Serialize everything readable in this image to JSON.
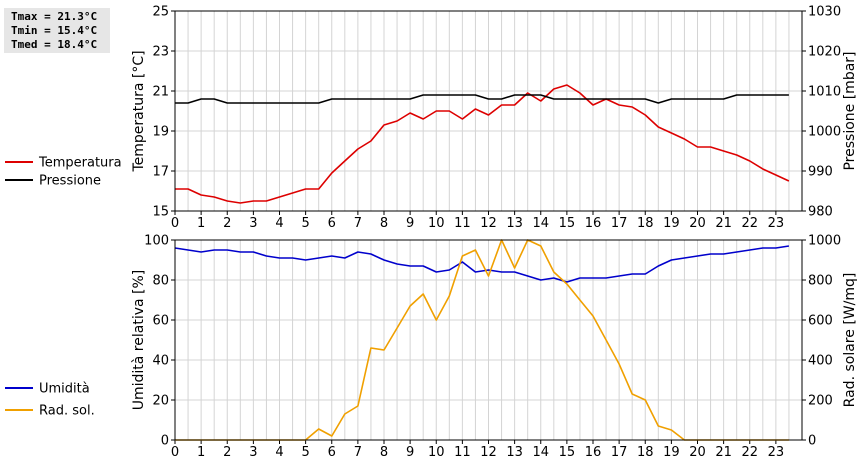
{
  "stats": {
    "tmax": "Tmax = 21.3°C",
    "tmin": "Tmin = 15.4°C",
    "tmed": "Tmed = 18.4°C"
  },
  "chart_data": [
    {
      "type": "line",
      "title": "",
      "xlabel": "",
      "ylabel": "Temperatura [°C]",
      "ylabel_right": "Pressione [mbar]",
      "x_ticks": [
        "0",
        "1",
        "2",
        "3",
        "4",
        "5",
        "6",
        "7",
        "8",
        "9",
        "10",
        "11",
        "12",
        "13",
        "14",
        "15",
        "16",
        "17",
        "18",
        "19",
        "20",
        "21",
        "22",
        "23"
      ],
      "xlim": [
        0,
        24
      ],
      "ylim": [
        15,
        25
      ],
      "ylim_right": [
        980,
        1030
      ],
      "y_ticks": [
        "15",
        "17",
        "19",
        "21",
        "23",
        "25"
      ],
      "y_ticks_right": [
        "980",
        "990",
        "1000",
        "1010",
        "1020",
        "1030"
      ],
      "grid": true,
      "legend_position": "left",
      "series": [
        {
          "name": "Temperatura",
          "color": "#dd0000",
          "axis": "left",
          "x": [
            0,
            0.5,
            1,
            1.5,
            2,
            2.5,
            3,
            3.5,
            4,
            4.5,
            5,
            5.5,
            6,
            6.5,
            7,
            7.5,
            8,
            8.5,
            9,
            9.5,
            10,
            10.5,
            11,
            11.5,
            12,
            12.5,
            13,
            13.5,
            14,
            14.5,
            15,
            15.5,
            16,
            16.5,
            17,
            17.5,
            18,
            18.5,
            19,
            19.5,
            20,
            20.5,
            21,
            21.5,
            22,
            22.5,
            23,
            23.5
          ],
          "values": [
            16.1,
            16.1,
            15.8,
            15.7,
            15.5,
            15.4,
            15.5,
            15.5,
            15.7,
            15.9,
            16.1,
            16.1,
            16.9,
            17.5,
            18.1,
            18.5,
            19.3,
            19.5,
            19.9,
            19.6,
            20.0,
            20.0,
            19.6,
            20.1,
            19.8,
            20.3,
            20.3,
            20.9,
            20.5,
            21.1,
            21.3,
            20.9,
            20.3,
            20.6,
            20.3,
            20.2,
            19.8,
            19.2,
            18.9,
            18.6,
            18.2,
            18.2,
            18.0,
            17.8,
            17.5,
            17.1,
            16.8,
            16.5
          ]
        },
        {
          "name": "Pressione",
          "color": "#000000",
          "axis": "right",
          "x": [
            0,
            0.5,
            1,
            1.5,
            2,
            2.5,
            3,
            3.5,
            4,
            4.5,
            5,
            5.5,
            6,
            6.5,
            7,
            7.5,
            8,
            8.5,
            9,
            9.5,
            10,
            10.5,
            11,
            11.5,
            12,
            12.5,
            13,
            13.5,
            14,
            14.5,
            15,
            15.5,
            16,
            16.5,
            17,
            17.5,
            18,
            18.5,
            19,
            19.5,
            20,
            20.5,
            21,
            21.5,
            22,
            22.5,
            23,
            23.5
          ],
          "values": [
            1007,
            1007,
            1008,
            1008,
            1007,
            1007,
            1007,
            1007,
            1007,
            1007,
            1007,
            1007,
            1008,
            1008,
            1008,
            1008,
            1008,
            1008,
            1008,
            1009,
            1009,
            1009,
            1009,
            1009,
            1008,
            1008,
            1009,
            1009,
            1009,
            1008,
            1008,
            1008,
            1008,
            1008,
            1008,
            1008,
            1008,
            1007,
            1008,
            1008,
            1008,
            1008,
            1008,
            1009,
            1009,
            1009,
            1009,
            1009
          ]
        }
      ]
    },
    {
      "type": "line",
      "title": "",
      "xlabel": "",
      "ylabel": "Umidità relativa [%]",
      "ylabel_right": "Rad. solare [W/mq]",
      "x_ticks": [
        "0",
        "1",
        "2",
        "3",
        "4",
        "5",
        "6",
        "7",
        "8",
        "9",
        "10",
        "11",
        "12",
        "13",
        "14",
        "15",
        "16",
        "17",
        "18",
        "19",
        "20",
        "21",
        "22",
        "23"
      ],
      "xlim": [
        0,
        24
      ],
      "ylim": [
        0,
        100
      ],
      "ylim_right": [
        0,
        1000
      ],
      "y_ticks": [
        "0",
        "20",
        "40",
        "60",
        "80",
        "100"
      ],
      "y_ticks_right": [
        "0",
        "200",
        "400",
        "600",
        "800",
        "1000"
      ],
      "grid": true,
      "legend_position": "left",
      "series": [
        {
          "name": "Umidità",
          "color": "#0000cc",
          "axis": "left",
          "x": [
            0,
            0.5,
            1,
            1.5,
            2,
            2.5,
            3,
            3.5,
            4,
            4.5,
            5,
            5.5,
            6,
            6.5,
            7,
            7.5,
            8,
            8.5,
            9,
            9.5,
            10,
            10.5,
            11,
            11.5,
            12,
            12.5,
            13,
            13.5,
            14,
            14.5,
            15,
            15.5,
            16,
            16.5,
            17,
            17.5,
            18,
            18.5,
            19,
            19.5,
            20,
            20.5,
            21,
            21.5,
            22,
            22.5,
            23,
            23.5
          ],
          "values": [
            96,
            95,
            94,
            95,
            95,
            94,
            94,
            92,
            91,
            91,
            90,
            91,
            92,
            91,
            94,
            93,
            90,
            88,
            87,
            87,
            84,
            85,
            89,
            84,
            85,
            84,
            84,
            82,
            80,
            81,
            79,
            81,
            81,
            81,
            82,
            83,
            83,
            87,
            90,
            91,
            92,
            93,
            93,
            94,
            95,
            96,
            96,
            97
          ]
        },
        {
          "name": "Rad. sol.",
          "color": "#f0a000",
          "axis": "right",
          "x": [
            0,
            0.5,
            1,
            1.5,
            2,
            2.5,
            3,
            3.5,
            4,
            4.5,
            5,
            5.5,
            6,
            6.5,
            7,
            7.5,
            8,
            8.5,
            9,
            9.5,
            10,
            10.5,
            11,
            11.5,
            12,
            12.5,
            13,
            13.5,
            14,
            14.5,
            15,
            15.5,
            16,
            16.5,
            17,
            17.5,
            18,
            18.5,
            19,
            19.5,
            20,
            20.5,
            21,
            21.5,
            22,
            22.5,
            23,
            23.5
          ],
          "values": [
            0,
            0,
            0,
            0,
            0,
            0,
            0,
            0,
            0,
            0,
            0,
            55,
            20,
            130,
            170,
            460,
            450,
            560,
            670,
            730,
            600,
            720,
            920,
            950,
            820,
            1000,
            860,
            1000,
            970,
            840,
            780,
            700,
            620,
            500,
            380,
            230,
            200,
            70,
            50,
            0,
            0,
            0,
            0,
            0,
            0,
            0,
            0,
            0
          ]
        }
      ]
    }
  ]
}
